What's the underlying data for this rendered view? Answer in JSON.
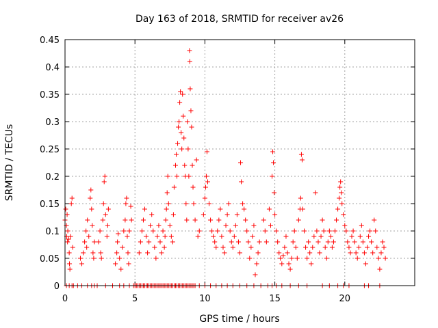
{
  "chart_data": {
    "type": "scatter",
    "title": "Day 163 of 2018, SRMTID for receiver av26",
    "xlabel": "GPS time / hours",
    "ylabel": "SRMTID / TECUs",
    "xlim": [
      0,
      25
    ],
    "ylim": [
      0,
      0.45
    ],
    "xticks": [
      0,
      5,
      10,
      15,
      20
    ],
    "xtick_labels": [
      "0",
      "5",
      "10",
      "15",
      "20"
    ],
    "yticks": [
      0,
      0.05,
      0.1,
      0.15,
      0.2,
      0.25,
      0.3,
      0.35,
      0.4,
      0.45
    ],
    "ytick_labels": [
      "0",
      "0.05",
      "0.1",
      "0.15",
      "0.2",
      "0.25",
      "0.3",
      "0.35",
      "0.4",
      "0.45"
    ],
    "grid": true,
    "marker": "+",
    "series": [
      {
        "name": "SRMTID av26",
        "color": "#ff0000",
        "points": [
          [
            0.0,
            0.12
          ],
          [
            0.05,
            0.14
          ],
          [
            0.1,
            0.11
          ],
          [
            0.12,
            0.09
          ],
          [
            0.15,
            0.13
          ],
          [
            0.18,
            0.08
          ],
          [
            0.2,
            0.1
          ],
          [
            0.25,
            0.085
          ],
          [
            0.3,
            0.06
          ],
          [
            0.32,
            0.04
          ],
          [
            0.35,
            0.03
          ],
          [
            0.4,
            0.09
          ],
          [
            0.45,
            0.15
          ],
          [
            0.5,
            0.16
          ],
          [
            0.55,
            0.07
          ],
          [
            1.1,
            0.05
          ],
          [
            1.2,
            0.04
          ],
          [
            1.3,
            0.06
          ],
          [
            1.4,
            0.08
          ],
          [
            1.5,
            0.1
          ],
          [
            1.55,
            0.07
          ],
          [
            1.6,
            0.12
          ],
          [
            1.7,
            0.09
          ],
          [
            1.8,
            0.16
          ],
          [
            1.85,
            0.175
          ],
          [
            1.9,
            0.14
          ],
          [
            1.95,
            0.11
          ],
          [
            2.0,
            0.06
          ],
          [
            2.05,
            0.05
          ],
          [
            2.1,
            0.08
          ],
          [
            2.4,
            0.08
          ],
          [
            2.5,
            0.1
          ],
          [
            2.55,
            0.06
          ],
          [
            2.6,
            0.05
          ],
          [
            2.7,
            0.12
          ],
          [
            2.75,
            0.15
          ],
          [
            2.8,
            0.19
          ],
          [
            2.85,
            0.2
          ],
          [
            2.9,
            0.13
          ],
          [
            3.0,
            0.09
          ],
          [
            3.05,
            0.11
          ],
          [
            3.1,
            0.14
          ],
          [
            3.6,
            0.04
          ],
          [
            3.7,
            0.06
          ],
          [
            3.75,
            0.08
          ],
          [
            3.8,
            0.095
          ],
          [
            3.9,
            0.05
          ],
          [
            4.0,
            0.03
          ],
          [
            4.1,
            0.07
          ],
          [
            4.2,
            0.1
          ],
          [
            4.3,
            0.12
          ],
          [
            4.35,
            0.15
          ],
          [
            4.4,
            0.16
          ],
          [
            4.45,
            0.09
          ],
          [
            4.5,
            0.06
          ],
          [
            4.55,
            0.04
          ],
          [
            4.6,
            0.1
          ],
          [
            4.7,
            0.145
          ],
          [
            4.75,
            0.12
          ],
          [
            5.3,
            0.06
          ],
          [
            5.4,
            0.08
          ],
          [
            5.5,
            0.1
          ],
          [
            5.6,
            0.12
          ],
          [
            5.7,
            0.14
          ],
          [
            5.8,
            0.09
          ],
          [
            5.9,
            0.06
          ],
          [
            6.0,
            0.08
          ],
          [
            6.1,
            0.11
          ],
          [
            6.2,
            0.13
          ],
          [
            6.3,
            0.1
          ],
          [
            6.4,
            0.07
          ],
          [
            6.5,
            0.05
          ],
          [
            6.6,
            0.09
          ],
          [
            6.7,
            0.11
          ],
          [
            6.8,
            0.08
          ],
          [
            6.9,
            0.06
          ],
          [
            7.0,
            0.1
          ],
          [
            7.1,
            0.07
          ],
          [
            7.15,
            0.09
          ],
          [
            7.2,
            0.12
          ],
          [
            7.25,
            0.14
          ],
          [
            7.3,
            0.17
          ],
          [
            7.35,
            0.2
          ],
          [
            7.4,
            0.15
          ],
          [
            7.5,
            0.11
          ],
          [
            7.6,
            0.09
          ],
          [
            7.7,
            0.08
          ],
          [
            7.75,
            0.13
          ],
          [
            7.8,
            0.18
          ],
          [
            7.9,
            0.22
          ],
          [
            7.95,
            0.24
          ],
          [
            8.0,
            0.2
          ],
          [
            8.05,
            0.26
          ],
          [
            8.1,
            0.29
          ],
          [
            8.15,
            0.3
          ],
          [
            8.2,
            0.335
          ],
          [
            8.25,
            0.355
          ],
          [
            8.3,
            0.28
          ],
          [
            8.35,
            0.25
          ],
          [
            8.4,
            0.35
          ],
          [
            8.45,
            0.31
          ],
          [
            8.5,
            0.27
          ],
          [
            8.55,
            0.22
          ],
          [
            8.6,
            0.2
          ],
          [
            8.65,
            0.15
          ],
          [
            8.7,
            0.12
          ],
          [
            8.75,
            0.3
          ],
          [
            8.8,
            0.25
          ],
          [
            8.85,
            0.2
          ],
          [
            8.9,
            0.43
          ],
          [
            8.92,
            0.41
          ],
          [
            8.95,
            0.36
          ],
          [
            9.0,
            0.32
          ],
          [
            9.05,
            0.29
          ],
          [
            9.1,
            0.22
          ],
          [
            9.15,
            0.18
          ],
          [
            9.2,
            0.15
          ],
          [
            9.3,
            0.12
          ],
          [
            9.4,
            0.23
          ],
          [
            9.5,
            0.09
          ],
          [
            9.6,
            0.1
          ],
          [
            9.9,
            0.13
          ],
          [
            10.0,
            0.16
          ],
          [
            10.05,
            0.18
          ],
          [
            10.1,
            0.2
          ],
          [
            10.15,
            0.245
          ],
          [
            10.2,
            0.19
          ],
          [
            10.3,
            0.15
          ],
          [
            10.4,
            0.12
          ],
          [
            10.5,
            0.1
          ],
          [
            10.6,
            0.09
          ],
          [
            10.7,
            0.08
          ],
          [
            10.8,
            0.07
          ],
          [
            10.9,
            0.1
          ],
          [
            11.0,
            0.12
          ],
          [
            11.1,
            0.14
          ],
          [
            11.2,
            0.09
          ],
          [
            11.3,
            0.07
          ],
          [
            11.4,
            0.06
          ],
          [
            11.5,
            0.11
          ],
          [
            11.6,
            0.13
          ],
          [
            11.7,
            0.15
          ],
          [
            11.8,
            0.1
          ],
          [
            11.9,
            0.08
          ],
          [
            12.0,
            0.07
          ],
          [
            12.1,
            0.09
          ],
          [
            12.2,
            0.11
          ],
          [
            12.3,
            0.13
          ],
          [
            12.4,
            0.08
          ],
          [
            12.5,
            0.06
          ],
          [
            12.55,
            0.225
          ],
          [
            12.6,
            0.19
          ],
          [
            12.7,
            0.15
          ],
          [
            12.8,
            0.14
          ],
          [
            12.9,
            0.12
          ],
          [
            13.0,
            0.1
          ],
          [
            13.1,
            0.08
          ],
          [
            13.2,
            0.05
          ],
          [
            13.3,
            0.07
          ],
          [
            13.4,
            0.09
          ],
          [
            13.5,
            0.11
          ],
          [
            13.6,
            0.02
          ],
          [
            13.7,
            0.04
          ],
          [
            13.8,
            0.06
          ],
          [
            13.9,
            0.08
          ],
          [
            14.2,
            0.12
          ],
          [
            14.3,
            0.1
          ],
          [
            14.4,
            0.08
          ],
          [
            14.6,
            0.14
          ],
          [
            14.7,
            0.11
          ],
          [
            14.8,
            0.2
          ],
          [
            14.85,
            0.245
          ],
          [
            14.9,
            0.225
          ],
          [
            14.95,
            0.17
          ],
          [
            15.0,
            0.13
          ],
          [
            15.1,
            0.1
          ],
          [
            15.2,
            0.08
          ],
          [
            15.3,
            0.06
          ],
          [
            15.4,
            0.05
          ],
          [
            15.5,
            0.04
          ],
          [
            15.6,
            0.055
          ],
          [
            15.7,
            0.07
          ],
          [
            15.8,
            0.09
          ],
          [
            15.9,
            0.06
          ],
          [
            16.0,
            0.04
          ],
          [
            16.1,
            0.03
          ],
          [
            16.2,
            0.05
          ],
          [
            16.3,
            0.08
          ],
          [
            16.4,
            0.1
          ],
          [
            16.5,
            0.07
          ],
          [
            16.6,
            0.05
          ],
          [
            16.7,
            0.12
          ],
          [
            16.8,
            0.14
          ],
          [
            16.85,
            0.16
          ],
          [
            16.9,
            0.24
          ],
          [
            16.95,
            0.23
          ],
          [
            17.0,
            0.14
          ],
          [
            17.1,
            0.1
          ],
          [
            17.2,
            0.07
          ],
          [
            17.3,
            0.05
          ],
          [
            17.4,
            0.08
          ],
          [
            17.5,
            0.06
          ],
          [
            17.6,
            0.04
          ],
          [
            17.7,
            0.07
          ],
          [
            17.8,
            0.09
          ],
          [
            17.9,
            0.17
          ],
          [
            18.0,
            0.1
          ],
          [
            18.1,
            0.08
          ],
          [
            18.2,
            0.06
          ],
          [
            18.3,
            0.09
          ],
          [
            18.4,
            0.12
          ],
          [
            18.5,
            0.1
          ],
          [
            18.6,
            0.07
          ],
          [
            18.7,
            0.05
          ],
          [
            18.8,
            0.08
          ],
          [
            18.9,
            0.1
          ],
          [
            19.0,
            0.09
          ],
          [
            19.1,
            0.07
          ],
          [
            19.2,
            0.08
          ],
          [
            19.3,
            0.1
          ],
          [
            19.4,
            0.12
          ],
          [
            19.5,
            0.14
          ],
          [
            19.6,
            0.16
          ],
          [
            19.65,
            0.18
          ],
          [
            19.7,
            0.19
          ],
          [
            19.75,
            0.17
          ],
          [
            19.8,
            0.15
          ],
          [
            19.9,
            0.13
          ],
          [
            20.0,
            0.11
          ],
          [
            20.1,
            0.1
          ],
          [
            20.2,
            0.08
          ],
          [
            20.3,
            0.07
          ],
          [
            20.4,
            0.06
          ],
          [
            20.5,
            0.09
          ],
          [
            20.6,
            0.1
          ],
          [
            20.7,
            0.08
          ],
          [
            20.8,
            0.06
          ],
          [
            20.9,
            0.05
          ],
          [
            21.0,
            0.07
          ],
          [
            21.1,
            0.09
          ],
          [
            21.2,
            0.11
          ],
          [
            21.3,
            0.08
          ],
          [
            21.4,
            0.06
          ],
          [
            21.5,
            0.04
          ],
          [
            21.6,
            0.07
          ],
          [
            21.7,
            0.09
          ],
          [
            21.8,
            0.1
          ],
          [
            21.9,
            0.08
          ],
          [
            22.0,
            0.06
          ],
          [
            22.1,
            0.12
          ],
          [
            22.2,
            0.1
          ],
          [
            22.3,
            0.07
          ],
          [
            22.4,
            0.05
          ],
          [
            22.5,
            0.03
          ],
          [
            22.6,
            0.06
          ],
          [
            22.7,
            0.08
          ],
          [
            22.8,
            0.07
          ],
          [
            22.9,
            0.05
          ]
        ],
        "zeros_x": [
          0.1,
          0.3,
          0.5,
          0.6,
          0.9,
          1.2,
          1.6,
          1.9,
          2.1,
          2.3,
          2.9,
          3.4,
          3.9,
          4.2,
          4.6,
          4.9,
          5.0,
          5.1,
          5.2,
          5.3,
          5.4,
          5.5,
          5.6,
          5.7,
          5.8,
          5.9,
          6.0,
          6.1,
          6.2,
          6.3,
          6.4,
          6.5,
          6.6,
          6.7,
          6.8,
          6.9,
          7.0,
          7.1,
          7.2,
          7.3,
          7.4,
          7.5,
          7.6,
          7.7,
          7.8,
          7.9,
          8.0,
          8.1,
          8.2,
          8.3,
          8.4,
          8.5,
          8.6,
          8.7,
          8.8,
          8.9,
          9.0,
          9.1,
          9.2,
          9.3,
          9.6,
          10.0,
          10.4,
          10.8,
          11.2,
          11.6,
          12.0,
          12.5,
          13.0,
          13.5,
          14.0,
          14.5,
          14.8,
          15.1,
          15.5,
          16.1,
          16.7,
          17.3,
          18.4,
          18.9,
          19.5,
          19.9,
          20.3,
          21.4,
          21.7,
          22.5
        ]
      }
    ]
  }
}
